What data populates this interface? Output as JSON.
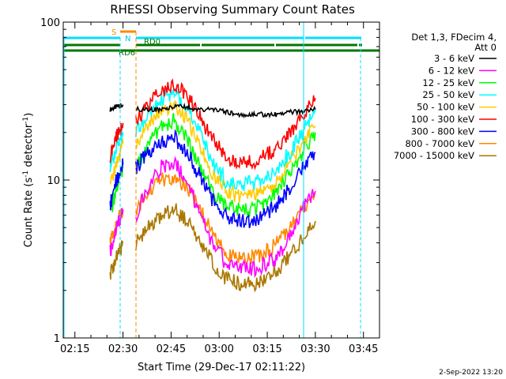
{
  "chart_data": {
    "type": "line",
    "title": "RHESSI Observing Summary Count Rates",
    "xlabel": "Start Time (29-Dec-17 02:11:22)",
    "ylabel_main": "Count Rate (s",
    "ylabel_sup1": "-1",
    "ylabel_mid": " detector",
    "ylabel_sup2": "-1",
    "ylabel_end": ")",
    "yscale": "log",
    "ylim": [
      1,
      100
    ],
    "xlim": [
      "02:11:22",
      "03:50:00"
    ],
    "x_ticks": [
      "02:15",
      "02:30",
      "02:45",
      "03:00",
      "03:15",
      "03:30",
      "03:45"
    ],
    "y_ticks": [
      "1",
      "10",
      "100"
    ],
    "legend_header": [
      "Det 1,3, FDecim 4,",
      "Att 0"
    ],
    "legend_placement": "right",
    "timestamp": "2-Sep-2022 13:20",
    "flag_labels": {
      "saa": "S",
      "night": "N",
      "rd0": "RD0",
      "rd6": "RD6"
    },
    "x": [
      "02:26",
      "02:28",
      "02:30",
      "02:34",
      "02:38",
      "02:42",
      "02:46",
      "02:50",
      "02:54",
      "02:58",
      "03:02",
      "03:06",
      "03:10",
      "03:14",
      "03:18",
      "03:22",
      "03:26",
      "03:30"
    ],
    "series": [
      {
        "name": "3 - 6 keV",
        "color": "#000000",
        "values": [
          28,
          29,
          30,
          28,
          28,
          28,
          29,
          29,
          28,
          28,
          27,
          26,
          26,
          26,
          26,
          27,
          27,
          28
        ]
      },
      {
        "name": "6 - 12 keV",
        "color": "#ff00ff",
        "values": [
          3.5,
          5,
          6.5,
          6,
          9,
          12,
          13,
          10,
          6,
          4,
          3,
          2.8,
          2.7,
          2.9,
          3.2,
          4.5,
          6.5,
          8.5
        ]
      },
      {
        "name": "12 - 25 keV",
        "color": "#00ff00",
        "values": [
          6,
          9,
          12,
          12,
          17,
          22,
          24,
          18,
          12,
          8.5,
          7,
          6.5,
          6.5,
          7,
          8.5,
          11,
          15,
          20
        ]
      },
      {
        "name": "25 - 50 keV",
        "color": "#00ffff",
        "values": [
          12,
          16,
          20,
          20,
          27,
          33,
          36,
          30,
          20,
          13,
          10,
          9.5,
          9.5,
          10,
          12,
          15,
          20,
          28
        ]
      },
      {
        "name": "50 - 100 keV",
        "color": "#ffcc00",
        "values": [
          9,
          13,
          17,
          17,
          23,
          28,
          30,
          24,
          16,
          11,
          8.5,
          8,
          8,
          8.5,
          10,
          13,
          17,
          22
        ]
      },
      {
        "name": "100 - 300 keV",
        "color": "#ff0000",
        "values": [
          14,
          19,
          23,
          23,
          31,
          37,
          40,
          34,
          25,
          18,
          14,
          13,
          13,
          14,
          16,
          20,
          26,
          33
        ]
      },
      {
        "name": "300 - 800 keV",
        "color": "#0000ff",
        "values": [
          7,
          10,
          12.5,
          12,
          15,
          17.5,
          18.5,
          15,
          10.5,
          7.5,
          6,
          5.5,
          5.5,
          6,
          7,
          9,
          12,
          15
        ]
      },
      {
        "name": "800 - 7000 keV",
        "color": "#ff8800",
        "values": [
          4,
          5.5,
          6.5,
          6.5,
          8.5,
          10,
          10.5,
          9,
          6.5,
          4.5,
          3.5,
          3.2,
          3.2,
          3.4,
          4,
          5,
          6.5,
          8.5
        ]
      },
      {
        "name": "7000 - 15000 keV",
        "color": "#aa7700",
        "values": [
          2.5,
          3.2,
          4,
          4,
          5,
          6,
          6.5,
          5.5,
          4,
          3,
          2.4,
          2.2,
          2.2,
          2.3,
          2.7,
          3.3,
          4.2,
          5.5
        ]
      }
    ]
  }
}
